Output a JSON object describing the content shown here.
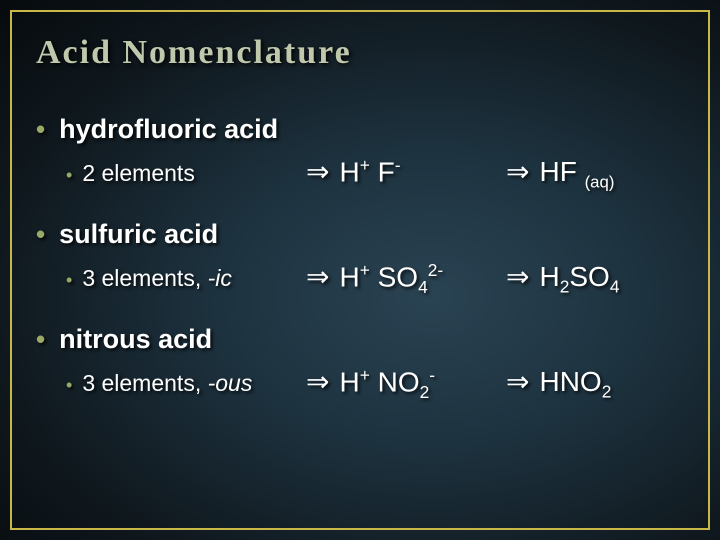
{
  "title": "Acid Nomenclature",
  "colors": {
    "border": "#c9b847",
    "bullet": "#99aa66",
    "title": "#bfc8ac",
    "text": "#ffffff",
    "bg_inner": "#2a4352",
    "bg_outer": "#060a0d"
  },
  "typography": {
    "title_fontsize": 34,
    "L1_fontsize": 27,
    "L2_fontsize": 23,
    "formula_fontsize": 28
  },
  "items": [
    {
      "name": "hydrofluoric acid",
      "detail_plain": "2 elements",
      "detail_italic": "",
      "ions_html": "H<sup>+</sup> F<sup>-</sup>",
      "formula_html": "HF <sub class='small'>(aq)</sub>"
    },
    {
      "name": "sulfuric acid",
      "detail_plain": "3 elements, ",
      "detail_italic": "-ic",
      "ions_html": "H<sup>+</sup> SO<sub>4</sub><sup>2-</sup>",
      "formula_html": "H<sub>2</sub>SO<sub>4</sub>"
    },
    {
      "name": "nitrous acid",
      "detail_plain": "3 elements, ",
      "detail_italic": "-ous",
      "ions_html": "H<sup>+</sup> NO<sub>2</sub><sup>-</sup>",
      "formula_html": "HNO<sub>2</sub>"
    }
  ],
  "symbols": {
    "arrow": "⇒",
    "bullet": "•"
  }
}
